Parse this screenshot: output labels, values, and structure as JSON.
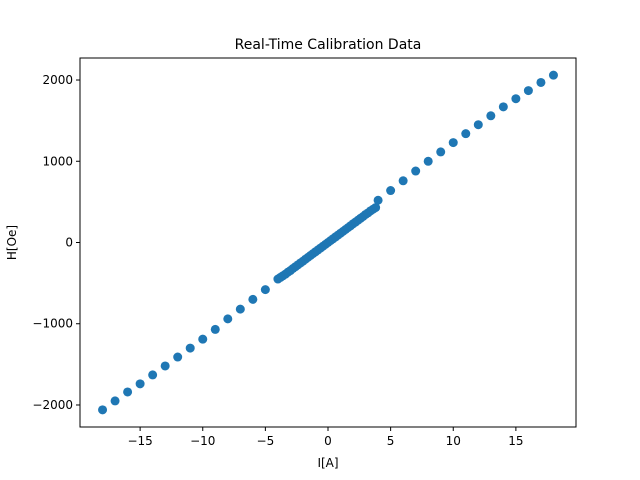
{
  "chart_data": {
    "type": "scatter",
    "title": "Real-Time Calibration Data",
    "xlabel": "I[A]",
    "ylabel": "H[Oe]",
    "xlim": [
      -19.8,
      19.8
    ],
    "ylim": [
      -2271,
      2271
    ],
    "xticks": [
      -15,
      -10,
      -5,
      0,
      5,
      10,
      15
    ],
    "yticks": [
      -2000,
      -1000,
      0,
      1000,
      2000
    ],
    "xtick_labels": [
      "−15",
      "−10",
      "−5",
      "0",
      "5",
      "10",
      "15"
    ],
    "ytick_labels": [
      "−2000",
      "−1000",
      "0",
      "1000",
      "2000"
    ],
    "grid": false,
    "marker_color": "#1f77b4",
    "x": [
      -18,
      -17,
      -16,
      -15,
      -14,
      -13,
      -12,
      -11,
      -10,
      -9,
      -8,
      -7,
      -6,
      -5,
      -4,
      -3.8,
      -3.6,
      -3.4,
      -3.2,
      -3,
      -2.8,
      -2.6,
      -2.4,
      -2.2,
      -2,
      -1.8,
      -1.6,
      -1.4,
      -1.2,
      -1,
      -0.8,
      -0.6,
      -0.4,
      -0.2,
      0,
      0.2,
      0.4,
      0.6,
      0.8,
      1,
      1.2,
      1.4,
      1.6,
      1.8,
      2,
      2.2,
      2.4,
      2.6,
      2.8,
      3,
      3.2,
      3.4,
      3.6,
      3.8,
      4,
      5,
      6,
      7,
      8,
      9,
      10,
      11,
      12,
      13,
      14,
      15,
      16,
      17,
      18
    ],
    "y": [
      -2060,
      -1950,
      -1840,
      -1740,
      -1630,
      -1520,
      -1410,
      -1300,
      -1190,
      -1070,
      -940,
      -820,
      -700,
      -580,
      -450,
      -430,
      -410,
      -390,
      -365,
      -345,
      -320,
      -298,
      -275,
      -252,
      -230,
      -206,
      -183,
      -160,
      -137,
      -114,
      -91,
      -69,
      -46,
      -23,
      0,
      23,
      46,
      69,
      91,
      114,
      137,
      160,
      183,
      206,
      230,
      252,
      275,
      298,
      320,
      345,
      365,
      390,
      410,
      430,
      520,
      640,
      760,
      880,
      1000,
      1115,
      1230,
      1340,
      1450,
      1560,
      1670,
      1770,
      1870,
      1970,
      2060
    ]
  }
}
